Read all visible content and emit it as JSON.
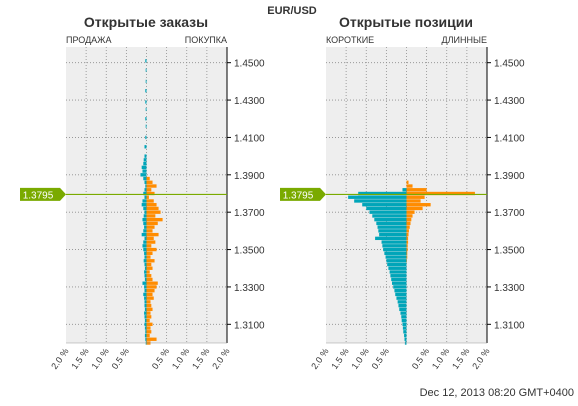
{
  "pair": "EUR/USD",
  "timestamp": "Dec 12, 2013 08:20 GMT+0400",
  "colors": {
    "sell": "#00a5b9",
    "buy": "#ff8c00",
    "price_line": "#7aaa00",
    "plot_bg": "#eeeeee",
    "grid": "#8c8c8c",
    "axis": "#000000"
  },
  "chart_data": [
    {
      "type": "bar",
      "orientation": "horizontal",
      "title": "Открытые заказы",
      "left_label": "ПРОДАЖА",
      "right_label": "ПОКУПКА",
      "price_marker": "1.3795",
      "price_marker_value": 1.3795,
      "xlim": [
        -2.0,
        2.0
      ],
      "ylim": [
        1.3,
        1.46
      ],
      "x_ticks": [
        "2.0 %",
        "1.5 %",
        "1.0 %",
        "0.5 %",
        "",
        "0.5 %",
        "1.0 %",
        "1.5 %",
        "2.0 %"
      ],
      "y_ticks": [
        "1.4500",
        "1.4300",
        "1.4100",
        "1.3900",
        "1.3700",
        "1.3500",
        "1.3300",
        "1.3100"
      ],
      "series": [
        {
          "name": "ПРОДАЖА",
          "price_levels": [
            1.451,
            1.446,
            1.44,
            1.435,
            1.429,
            1.425,
            1.42,
            1.416,
            1.41,
            1.405,
            1.4,
            1.398,
            1.396,
            1.394,
            1.392,
            1.39,
            1.388,
            1.386,
            1.384,
            1.382,
            1.38,
            1.378,
            1.376,
            1.374,
            1.372,
            1.37,
            1.368,
            1.366,
            1.364,
            1.362,
            1.36,
            1.358,
            1.356,
            1.354,
            1.352,
            1.35,
            1.348,
            1.346,
            1.344,
            1.342,
            1.34,
            1.338,
            1.336,
            1.334,
            1.332,
            1.33,
            1.328,
            1.326,
            1.324,
            1.322,
            1.32,
            1.318,
            1.316,
            1.314,
            1.312,
            1.31,
            1.308,
            1.306,
            1.304,
            1.302,
            1.3
          ],
          "values": [
            0.03,
            0.02,
            0.02,
            0.03,
            0.03,
            0.02,
            0.03,
            0.02,
            0.03,
            0.05,
            0.05,
            0.07,
            0.08,
            0.12,
            0.1,
            0.15,
            0.08,
            0.05,
            0.03,
            0.05,
            0.08,
            0.05,
            0.1,
            0.12,
            0.08,
            0.05,
            0.07,
            0.1,
            0.08,
            0.06,
            0.08,
            0.12,
            0.05,
            0.08,
            0.1,
            0.08,
            0.06,
            0.05,
            0.07,
            0.05,
            0.04,
            0.06,
            0.05,
            0.04,
            0.1,
            0.06,
            0.05,
            0.08,
            0.06,
            0.05,
            0.05,
            0.04,
            0.06,
            0.05,
            0.04,
            0.05,
            0.04,
            0.03,
            0.04,
            0.03,
            0.02
          ]
        },
        {
          "name": "ПОКУПКА",
          "price_levels": [
            1.451,
            1.446,
            1.44,
            1.435,
            1.429,
            1.425,
            1.42,
            1.416,
            1.41,
            1.405,
            1.4,
            1.398,
            1.396,
            1.394,
            1.392,
            1.39,
            1.388,
            1.386,
            1.384,
            1.382,
            1.38,
            1.378,
            1.376,
            1.374,
            1.372,
            1.37,
            1.368,
            1.366,
            1.364,
            1.362,
            1.36,
            1.358,
            1.356,
            1.354,
            1.352,
            1.35,
            1.348,
            1.346,
            1.344,
            1.342,
            1.34,
            1.338,
            1.336,
            1.334,
            1.332,
            1.33,
            1.328,
            1.326,
            1.324,
            1.322,
            1.32,
            1.318,
            1.316,
            1.314,
            1.312,
            1.31,
            1.308,
            1.306,
            1.304,
            1.302,
            1.3
          ],
          "values": [
            0.0,
            0.0,
            0.0,
            0.0,
            0.0,
            0.0,
            0.0,
            0.0,
            0.0,
            0.0,
            0.0,
            0.0,
            0.0,
            0.0,
            0.0,
            0.0,
            0.08,
            0.15,
            0.25,
            0.12,
            0.2,
            0.06,
            0.18,
            0.25,
            0.3,
            0.35,
            0.22,
            0.4,
            0.28,
            0.2,
            0.15,
            0.3,
            0.18,
            0.22,
            0.12,
            0.25,
            0.15,
            0.1,
            0.2,
            0.12,
            0.15,
            0.08,
            0.12,
            0.15,
            0.28,
            0.25,
            0.2,
            0.15,
            0.18,
            0.1,
            0.12,
            0.15,
            0.1,
            0.12,
            0.08,
            0.15,
            0.1,
            0.12,
            0.08,
            0.25,
            0.1
          ]
        }
      ]
    },
    {
      "type": "bar",
      "orientation": "horizontal",
      "title": "Открытые позиции",
      "left_label": "КОРОТКИЕ",
      "right_label": "ДЛИННЫЕ",
      "price_marker": "1.3795",
      "price_marker_value": 1.3795,
      "xlim": [
        -2.0,
        2.0
      ],
      "ylim": [
        1.3,
        1.46
      ],
      "x_ticks": [
        "2.0 %",
        "1.5 %",
        "1.0 %",
        "0.5 %",
        "",
        "0.5 %",
        "1.0 %",
        "1.5 %",
        "2.0 %"
      ],
      "y_ticks": [
        "1.4500",
        "1.4300",
        "1.4100",
        "1.3900",
        "1.3700",
        "1.3500",
        "1.3300",
        "1.3100"
      ],
      "series": [
        {
          "name": "КОРОТКИЕ",
          "price_levels": [
            1.382,
            1.38,
            1.378,
            1.376,
            1.374,
            1.372,
            1.37,
            1.368,
            1.366,
            1.364,
            1.362,
            1.36,
            1.358,
            1.356,
            1.354,
            1.352,
            1.35,
            1.348,
            1.346,
            1.344,
            1.342,
            1.34,
            1.338,
            1.336,
            1.334,
            1.332,
            1.33,
            1.328,
            1.326,
            1.324,
            1.322,
            1.32,
            1.318,
            1.316,
            1.314,
            1.312,
            1.31,
            1.308,
            1.306,
            1.304,
            1.302,
            1.3
          ],
          "values": [
            0.1,
            1.2,
            1.45,
            1.3,
            1.1,
            1.0,
            0.92,
            0.85,
            0.8,
            0.75,
            0.72,
            0.7,
            0.68,
            0.78,
            0.62,
            0.6,
            0.58,
            0.55,
            0.52,
            0.5,
            0.48,
            0.45,
            0.42,
            0.4,
            0.38,
            0.36,
            0.33,
            0.3,
            0.28,
            0.25,
            0.22,
            0.2,
            0.18,
            0.15,
            0.13,
            0.12,
            0.1,
            0.09,
            0.08,
            0.06,
            0.05,
            0.04
          ]
        },
        {
          "name": "ДЛИННЫЕ",
          "price_levels": [
            1.386,
            1.384,
            1.382,
            1.38,
            1.378,
            1.376,
            1.374,
            1.372,
            1.37,
            1.368,
            1.366,
            1.364,
            1.362,
            1.36,
            1.358,
            1.356,
            1.354,
            1.352,
            1.35,
            1.348,
            1.346,
            1.344
          ],
          "values": [
            0.05,
            0.15,
            0.5,
            1.7,
            0.45,
            0.35,
            0.6,
            0.4,
            0.2,
            0.15,
            0.12,
            0.1,
            0.08,
            0.06,
            0.05,
            0.04,
            0.04,
            0.03,
            0.03,
            0.02,
            0.02,
            0.01
          ]
        }
      ]
    }
  ]
}
